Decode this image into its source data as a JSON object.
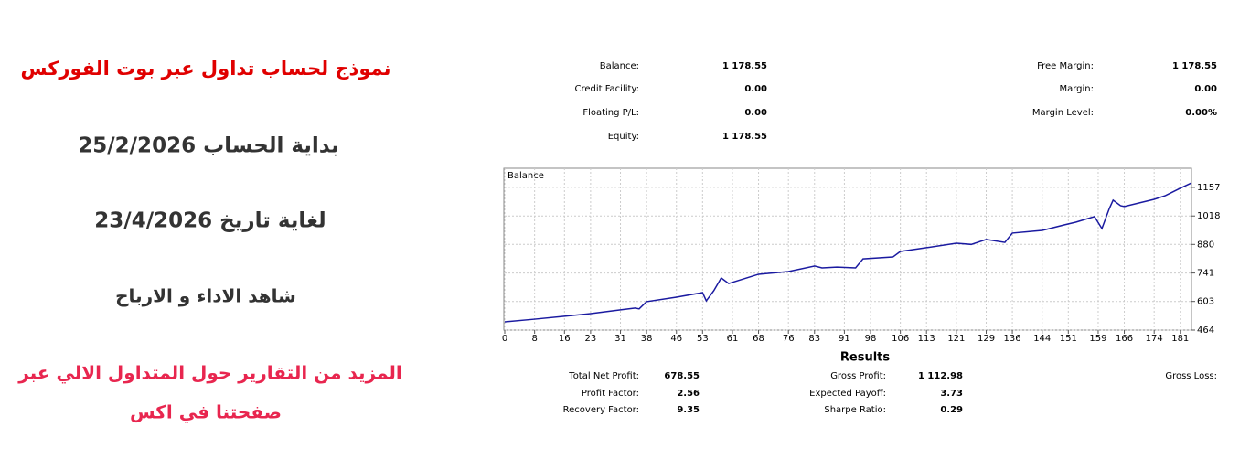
{
  "promo": {
    "title": "نموذج لحساب تداول عبر بوت الفوركس",
    "start": "بداية الحساب 25/2/2026",
    "end": "لغاية تاريخ 23/4/2026",
    "watch": "شاهد الاداء  و الارباح",
    "more_line1": "المزيد من التقارير حول المتداول الالي عبر",
    "more_line2": "صفحتنا في اكس"
  },
  "summary": {
    "left": [
      [
        "Balance:",
        "1 178.55"
      ],
      [
        "Credit Facility:",
        "0.00"
      ],
      [
        "Floating P/L:",
        "0.00"
      ],
      [
        "Equity:",
        "1 178.55"
      ]
    ],
    "right": [
      [
        "Free Margin:",
        "1 178.55"
      ],
      [
        "Margin:",
        "0.00"
      ],
      [
        "Margin Level:",
        "0.00%"
      ]
    ]
  },
  "chart_data": {
    "type": "line",
    "title": "Balance",
    "series": [
      {
        "name": "Balance",
        "color": "#1a1aa0",
        "x": [
          0,
          8,
          16,
          23,
          31,
          35,
          36,
          38,
          46,
          53,
          54,
          56,
          58,
          60,
          68,
          76,
          83,
          85,
          89,
          94,
          96,
          104,
          106,
          113,
          121,
          125,
          129,
          134,
          136,
          144,
          150,
          153,
          158,
          160,
          162,
          163,
          165,
          166,
          174,
          177,
          181,
          184
        ],
        "values": [
          504,
          517,
          531,
          544,
          562,
          571,
          567,
          602,
          624,
          646,
          606,
          655,
          717,
          690,
          735,
          748,
          775,
          766,
          770,
          766,
          810,
          819,
          846,
          864,
          886,
          880,
          904,
          890,
          935,
          948,
          975,
          988,
          1015,
          957,
          1055,
          1095,
          1068,
          1064,
          1099,
          1117,
          1153,
          1178.55
        ]
      }
    ],
    "xlim": [
      0,
      184
    ],
    "ylim": [
      464,
      1241
    ],
    "xticks": [
      0,
      8,
      16,
      23,
      31,
      38,
      46,
      53,
      61,
      68,
      76,
      83,
      91,
      98,
      106,
      113,
      121,
      129,
      136,
      144,
      151,
      159,
      166,
      174,
      181
    ],
    "yticks": [
      464,
      603,
      741,
      880,
      1018,
      1157
    ],
    "grid": true
  },
  "results": {
    "title": "Results",
    "rows": [
      [
        "Total Net Profit:",
        "678.55",
        "Gross Profit:",
        "1 112.98",
        "Gross Loss:"
      ],
      [
        "Profit Factor:",
        "2.56",
        "Expected Payoff:",
        "3.73"
      ],
      [
        "Recovery Factor:",
        "9.35",
        "Sharpe Ratio:",
        "0.29"
      ]
    ]
  }
}
